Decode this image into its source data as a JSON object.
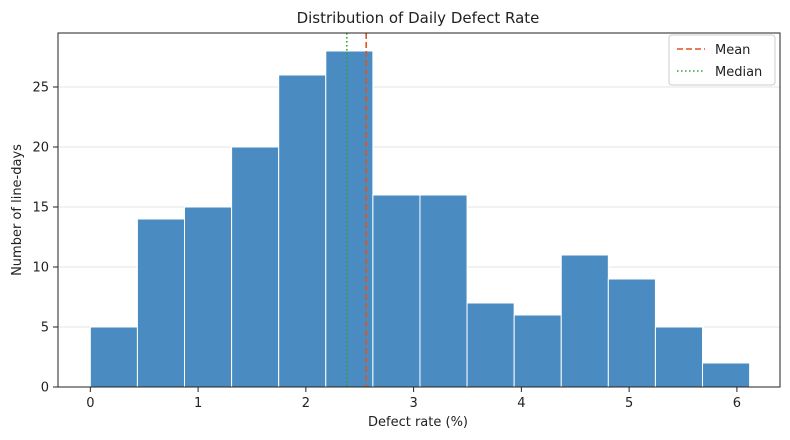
{
  "chart_data": {
    "type": "bar",
    "title": "Distribution of Daily Defect Rate",
    "xlabel": "Defect rate (%)",
    "ylabel": "Number of line-days",
    "bin_edges": [
      0.0,
      0.437,
      0.874,
      1.311,
      1.748,
      2.185,
      2.622,
      3.059,
      3.496,
      3.933,
      4.37,
      4.807,
      5.244,
      5.681,
      6.118
    ],
    "values": [
      5,
      14,
      15,
      20,
      26,
      28,
      16,
      16,
      7,
      6,
      11,
      9,
      5,
      2
    ],
    "xlim": [
      -0.3,
      6.4
    ],
    "ylim": [
      0,
      29.5
    ],
    "xticks": [
      0,
      1,
      2,
      3,
      4,
      5,
      6
    ],
    "yticks": [
      0,
      5,
      10,
      15,
      20,
      25
    ],
    "bar_color": "#4a8cc1",
    "grid": "y",
    "reference_lines": [
      {
        "name": "Mean",
        "value": 2.56,
        "color": "#e0531a",
        "style": "dashed"
      },
      {
        "name": "Median",
        "value": 2.38,
        "color": "#2ca02c",
        "style": "dotted"
      }
    ],
    "legend": {
      "placement": "top-right",
      "entries": [
        "Mean",
        "Median"
      ]
    }
  }
}
